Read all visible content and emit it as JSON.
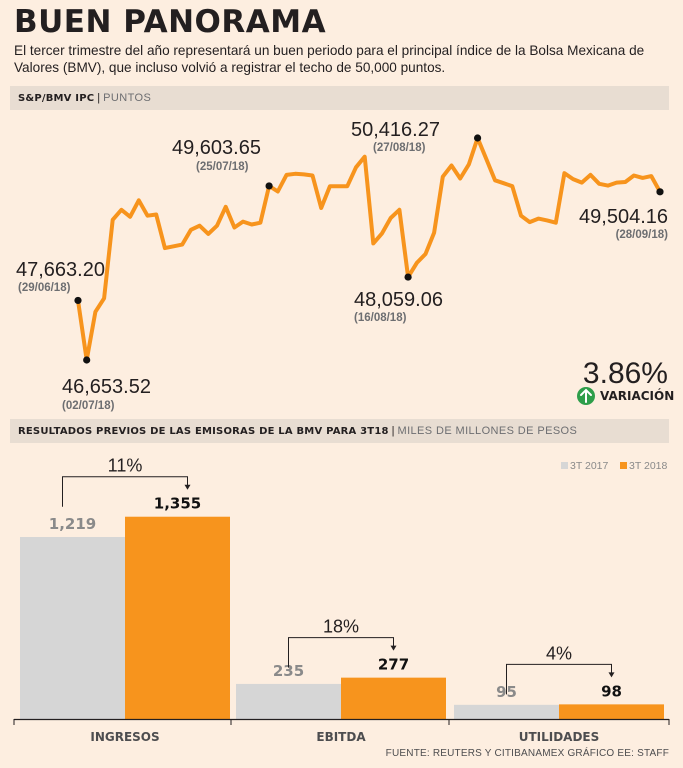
{
  "header": {
    "title": "BUEN PANORAMA",
    "subtitle": "El tercer trimestre del año representará un buen periodo para el principal índice de la Bolsa Mexicana de Valores (BMV), que incluso volvió a registrar el techo de 50,000 puntos."
  },
  "colors": {
    "line": "#f7941d",
    "bar2017": "#d6d6d6",
    "bar2018": "#f7941d",
    "up": "#2e9e4a",
    "band": "#e8ddd2"
  },
  "chart_data": [
    {
      "type": "line",
      "title": "S&P/BMV IPC",
      "unit": "PUNTOS",
      "ylim": [
        46300,
        50800
      ],
      "values": [
        47663.2,
        46653.52,
        47470,
        47700,
        49030,
        49200,
        49080,
        49360,
        49100,
        49120,
        48550,
        48580,
        48610,
        48860,
        48930,
        48790,
        48930,
        49250,
        48900,
        49000,
        48950,
        48980,
        49603.65,
        49510,
        49790,
        49810,
        49800,
        49780,
        49230,
        49600,
        49600,
        49600,
        49920,
        50100,
        48630,
        48800,
        49060,
        49200,
        48059.06,
        48300,
        48450,
        48810,
        49760,
        49950,
        49730,
        49970,
        50416.27,
        50060,
        49700,
        49650,
        49600,
        49100,
        48990,
        49050,
        49020,
        48980,
        49820,
        49720,
        49660,
        49790,
        49640,
        49610,
        49660,
        49670,
        49780,
        49740,
        49770,
        49504.16
      ],
      "annotations": [
        {
          "label": "47,663.20",
          "date": "(29/06/18)",
          "index": 0
        },
        {
          "label": "46,653.52",
          "date": "(02/07/18)",
          "index": 1
        },
        {
          "label": "49,603.65",
          "date": "(25/07/18)",
          "index": 22
        },
        {
          "label": "48,059.06",
          "date": "(16/08/18)",
          "index": 38
        },
        {
          "label": "50,416.27",
          "date": "(27/08/18)",
          "index": 46
        },
        {
          "label": "49,504.16",
          "date": "(28/09/18)",
          "index": 67
        }
      ],
      "change": {
        "value": "3.86%",
        "label": "VARIACIÓN"
      }
    },
    {
      "type": "bar",
      "title": "RESULTADOS PREVIOS DE LAS EMISORAS DE LA BMV PARA 3T18",
      "unit": "MILES DE MILLONES DE PESOS",
      "categories": [
        "INGRESOS",
        "EBITDA",
        "UTILIDADES"
      ],
      "series": [
        {
          "name": "3T 2017",
          "values": [
            1219,
            235,
            95
          ],
          "labels": [
            "1,219",
            "235",
            "95"
          ]
        },
        {
          "name": "3T 2018",
          "values": [
            1355,
            277,
            98
          ],
          "labels": [
            "1,355",
            "277",
            "98"
          ]
        }
      ],
      "growth": [
        "11%",
        "18%",
        "4%"
      ],
      "ylim": [
        0,
        1500
      ]
    }
  ],
  "footer": {
    "source": "FUENTE: REUTERS Y CITIBANAMEX GRÁFICO EE: STAFF"
  }
}
